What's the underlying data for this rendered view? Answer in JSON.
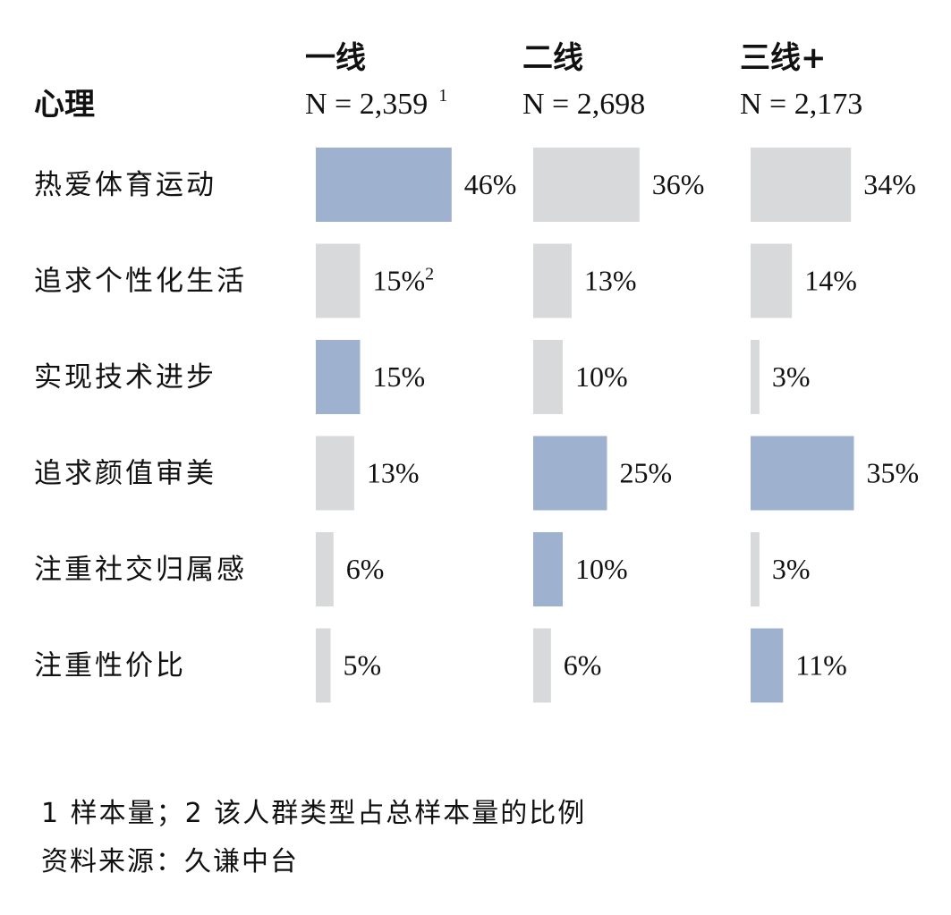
{
  "chart_data": {
    "type": "bar",
    "orientation": "horizontal",
    "title": "心理",
    "categories": [
      "热爱体育运动",
      "追求个性化生活",
      "实现技术进步",
      "追求颜值审美",
      "注重社交归属感",
      "注重性价比"
    ],
    "series": [
      {
        "name": "一线",
        "sample": "N = 2,359",
        "sample_note": "1",
        "values": [
          46,
          15,
          15,
          13,
          6,
          5
        ],
        "labels": [
          "46%",
          "15%",
          "15%",
          "13%",
          "6%",
          "5%"
        ],
        "label_notes": [
          "",
          "2",
          "",
          "",
          "",
          ""
        ],
        "highlight": [
          true,
          false,
          true,
          false,
          false,
          false
        ]
      },
      {
        "name": "二线",
        "sample": "N = 2,698",
        "sample_note": "",
        "values": [
          36,
          13,
          10,
          25,
          10,
          6
        ],
        "labels": [
          "36%",
          "13%",
          "10%",
          "25%",
          "10%",
          "6%"
        ],
        "label_notes": [
          "",
          "",
          "",
          "",
          "",
          ""
        ],
        "highlight": [
          false,
          false,
          false,
          true,
          true,
          false
        ]
      },
      {
        "name": "三线+",
        "sample": "N = 2,173",
        "sample_note": "",
        "values": [
          34,
          14,
          3,
          35,
          3,
          11
        ],
        "labels": [
          "34%",
          "14%",
          "3%",
          "35%",
          "3%",
          "11%"
        ],
        "label_notes": [
          "",
          "",
          "",
          "",
          "",
          ""
        ],
        "highlight": [
          false,
          false,
          false,
          true,
          false,
          true
        ]
      }
    ],
    "colors": {
      "highlight": "#9eb1cf",
      "default": "#d8d9db"
    }
  },
  "footnotes": {
    "note": "1 样本量；2 该人群类型占总样本量的比例",
    "source": "资料来源：久谦中台"
  }
}
